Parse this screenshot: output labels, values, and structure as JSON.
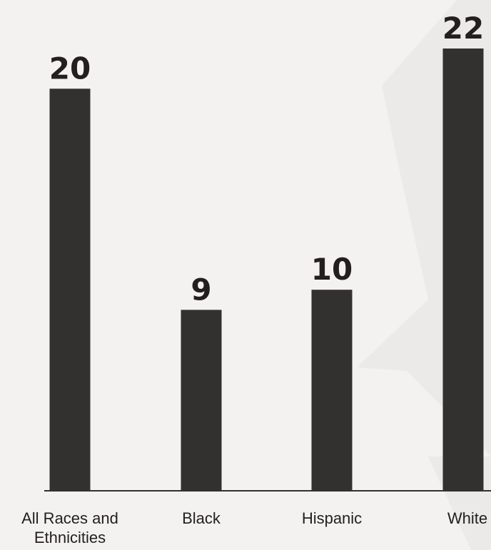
{
  "colors": {
    "background": "#f3f2f0",
    "bar": "#333030",
    "text": "#231f20",
    "watermark": "#e9e8e6"
  },
  "chart_data": {
    "type": "bar",
    "categories": [
      [
        "All Races and",
        "Ethnicities"
      ],
      [
        "Black"
      ],
      [
        "Hispanic"
      ],
      [
        "White"
      ]
    ],
    "values": [
      20,
      9,
      10,
      22
    ],
    "value_labels": [
      "20",
      "9",
      "10",
      "22"
    ],
    "ylim": [
      0,
      22
    ],
    "grid": false,
    "legend": "none"
  }
}
